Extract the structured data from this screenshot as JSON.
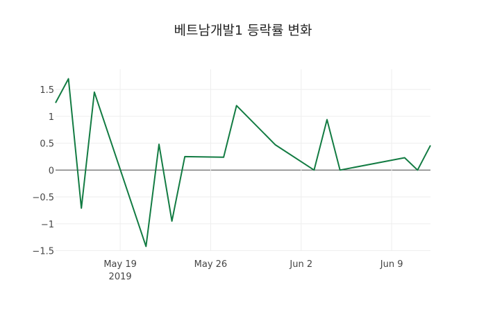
{
  "chart_data": {
    "type": "line",
    "title": "베트남개발1 등락률 변화",
    "xlabel": "",
    "ylabel": "",
    "x": [
      "2019-05-14",
      "2019-05-15",
      "2019-05-16",
      "2019-05-17",
      "2019-05-21",
      "2019-05-22",
      "2019-05-23",
      "2019-05-24",
      "2019-05-27",
      "2019-05-28",
      "2019-05-31",
      "2019-06-03",
      "2019-06-04",
      "2019-06-05",
      "2019-06-10",
      "2019-06-11",
      "2019-06-12"
    ],
    "series": [
      {
        "name": "등락률",
        "color": "#127b42",
        "values": [
          1.25,
          1.7,
          -0.71,
          1.45,
          -1.42,
          0.48,
          -0.95,
          0.25,
          0.24,
          1.2,
          0.47,
          0.0,
          0.94,
          0.0,
          0.23,
          0.0,
          0.46
        ]
      }
    ],
    "xlim": [
      "2019-05-14",
      "2019-06-12"
    ],
    "ylim": [
      -1.55,
      1.9
    ],
    "x_ticks": [
      {
        "date": "2019-05-19",
        "label": "May 19",
        "sublabel": "2019"
      },
      {
        "date": "2019-05-26",
        "label": "May 26"
      },
      {
        "date": "2019-06-02",
        "label": "Jun 2"
      },
      {
        "date": "2019-06-09",
        "label": "Jun 9"
      }
    ],
    "y_ticks": [
      {
        "value": 1.5,
        "label": "1.5"
      },
      {
        "value": 1,
        "label": "1"
      },
      {
        "value": 0.5,
        "label": "0.5"
      },
      {
        "value": 0,
        "label": "0"
      },
      {
        "value": -0.5,
        "label": "−0.5"
      },
      {
        "value": -1,
        "label": "−1"
      },
      {
        "value": -1.5,
        "label": "−1.5"
      }
    ],
    "grid": true,
    "legend": "none"
  }
}
